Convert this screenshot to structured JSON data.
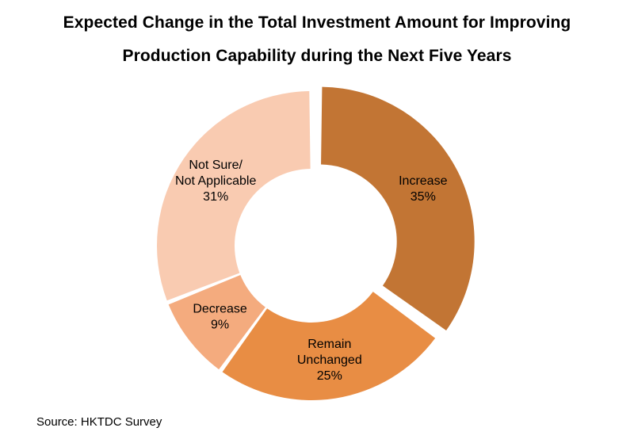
{
  "header": {
    "title_line1": "Expected Change in the Total Investment Amount for Improving",
    "title_line2": "Production Capability during the Next Five Years"
  },
  "footer": {
    "source": "Source: HKTDC Survey"
  },
  "chart_data": {
    "type": "pie",
    "variant": "donut",
    "title": "Expected Change in the Total Investment Amount for Improving Production Capability during the Next Five Years",
    "slices": [
      {
        "label_lines": [
          "Increase"
        ],
        "value": 35,
        "value_label": "35%",
        "color": "#C27534",
        "exploded": true
      },
      {
        "label_lines": [
          "Remain",
          "Unchanged"
        ],
        "value": 25,
        "value_label": "25%",
        "color": "#E88D44",
        "exploded": false
      },
      {
        "label_lines": [
          "Decrease"
        ],
        "value": 9,
        "value_label": "9%",
        "color": "#F4AB7E",
        "exploded": false
      },
      {
        "label_lines": [
          "Not Sure/",
          "Not Applicable"
        ],
        "value": 31,
        "value_label": "31%",
        "color": "#F9CBB1",
        "exploded": false
      }
    ],
    "start_angle_deg": 0,
    "direction": "clockwise",
    "legend": "none"
  }
}
